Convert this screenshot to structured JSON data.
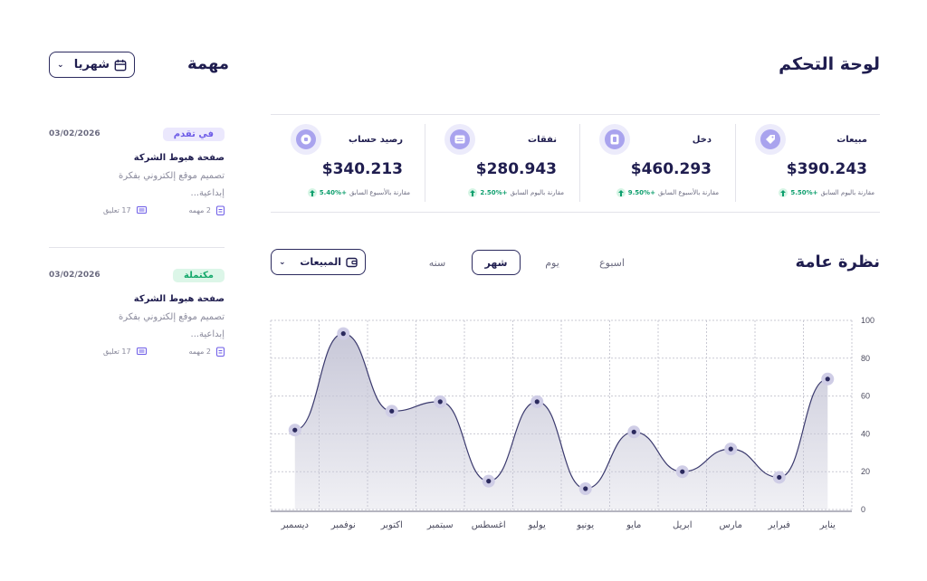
{
  "header": {
    "dashboard_title": "لوحة التحكم",
    "tasks_title": "مهمة",
    "period_select": "شهريا"
  },
  "stats": [
    {
      "label": "مبيعات",
      "value": "$390.243",
      "change": "+5.50%",
      "compare_text": "مقارنة باليوم السابق",
      "icon": "tag-icon"
    },
    {
      "label": "دخل",
      "value": "$460.293",
      "change": "+9.50%",
      "compare_text": "مقارنة بالأسبوع السابق",
      "icon": "document-icon"
    },
    {
      "label": "نفقات",
      "value": "$280.943",
      "change": "+2.50%",
      "compare_text": "مقارنة باليوم السابق",
      "icon": "card-icon"
    },
    {
      "label": "رصيد حساب",
      "value": "$340.213",
      "change": "+5.40%",
      "compare_text": "مقارنة بالأسبوع السابق",
      "icon": "coin-icon"
    }
  ],
  "overview": {
    "title": "نظرة عامة",
    "tabs": [
      "اسبوع",
      "يوم",
      "شهر",
      "سنه"
    ],
    "active_tab": "شهر",
    "metric_select": "المبيعات"
  },
  "chart_data": {
    "type": "area",
    "categories": [
      "يناير",
      "فبراير",
      "مارس",
      "ابريل",
      "مايو",
      "يونيو",
      "يوليو",
      "اغسطس",
      "سبتمبر",
      "اكتوبر",
      "نوفمبر",
      "ديسمبر"
    ],
    "values": [
      69,
      17,
      32,
      20,
      41,
      11,
      57,
      15,
      57,
      52,
      93,
      42
    ],
    "ylim": [
      0,
      100
    ],
    "yticks": [
      0,
      20,
      40,
      60,
      80,
      100
    ],
    "x_direction": "right-to-left",
    "grid": true,
    "line_color": "#3b3a6e",
    "fill_color": "#c5c5d6"
  },
  "tasks": [
    {
      "date": "03/02/2026",
      "status": "في تقدم",
      "status_color": "#6d5ce7",
      "status_bg": "#ebe8fd",
      "title": "صفحة هبوط الشركة",
      "desc": "تصميم موقع إلكتروني بفكرة إبداعية...",
      "subtasks": "2 مهمه",
      "comments": "17 تعليق"
    },
    {
      "date": "03/02/2026",
      "status": "مكتملة",
      "status_color": "#15a86b",
      "status_bg": "#dcf6e8",
      "title": "صفحة هبوط الشركة",
      "desc": "تصميم موقع إلكتروني بفكرة إبداعية...",
      "subtasks": "2 مهمه",
      "comments": "17 تعليق"
    }
  ],
  "colors": {
    "accent": "#6d5ce7",
    "dark": "#1f1d4f",
    "positive": "#0e9f6e"
  }
}
